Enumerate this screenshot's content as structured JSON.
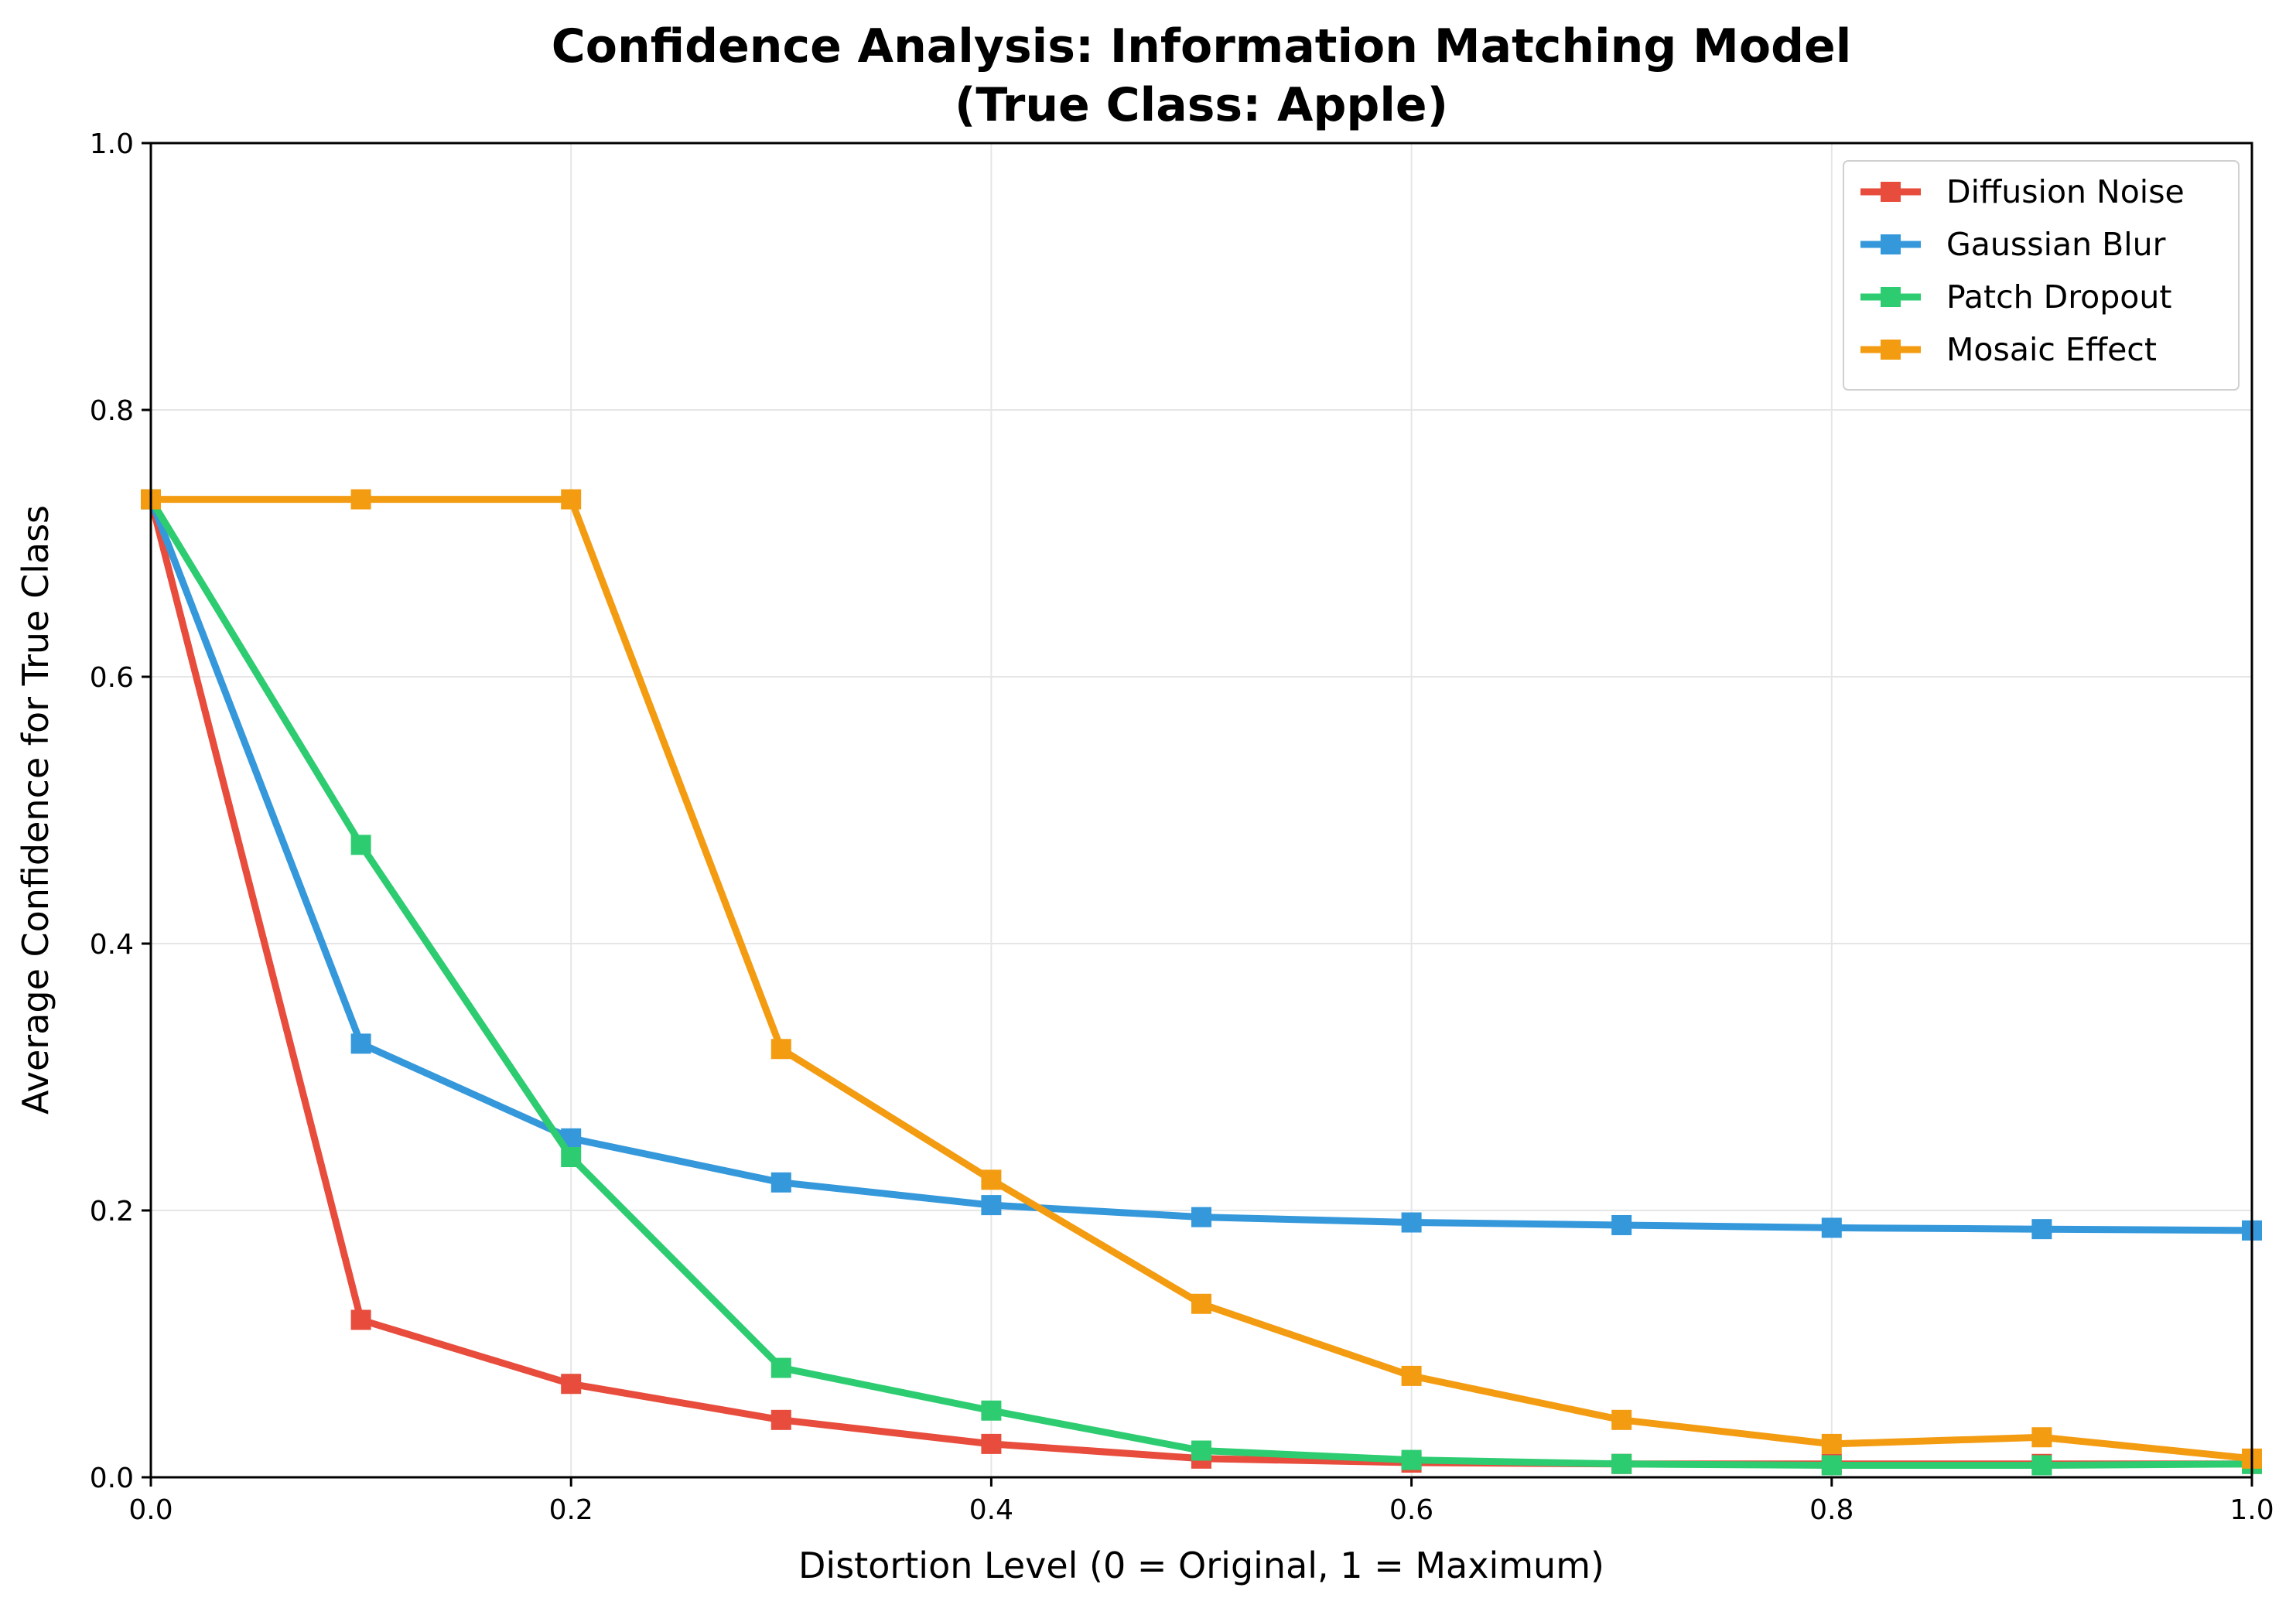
{
  "chart_data": {
    "type": "line",
    "title_line1": "Confidence Analysis: Information Matching Model",
    "title_line2": "(True Class: Apple)",
    "xlabel": "Distortion Level (0 = Original, 1 = Maximum)",
    "ylabel": "Average Confidence for True Class",
    "xlim": [
      0,
      1
    ],
    "ylim": [
      0,
      1
    ],
    "xticks": [
      "0.0",
      "0.2",
      "0.4",
      "0.6",
      "0.8",
      "1.0"
    ],
    "yticks": [
      "0.0",
      "0.2",
      "0.4",
      "0.6",
      "0.8",
      "1.0"
    ],
    "grid": true,
    "legend_position": "top-right",
    "x": [
      0.0,
      0.1,
      0.2,
      0.3,
      0.4,
      0.5,
      0.6,
      0.7,
      0.8,
      0.9,
      1.0
    ],
    "series": [
      {
        "name": "Diffusion Noise",
        "color": "#e74c3c",
        "marker": "square",
        "values": [
          0.733,
          0.118,
          0.07,
          0.043,
          0.025,
          0.014,
          0.011,
          0.01,
          0.01,
          0.01,
          0.01
        ]
      },
      {
        "name": "Gaussian Blur",
        "color": "#3498db",
        "marker": "square",
        "values": [
          0.733,
          0.325,
          0.254,
          0.221,
          0.204,
          0.195,
          0.191,
          0.189,
          0.187,
          0.186,
          0.185
        ]
      },
      {
        "name": "Patch Dropout",
        "color": "#2ecc71",
        "marker": "square",
        "values": [
          0.733,
          0.474,
          0.24,
          0.082,
          0.05,
          0.02,
          0.013,
          0.01,
          0.009,
          0.009,
          0.01
        ]
      },
      {
        "name": "Mosaic Effect",
        "color": "#f39c12",
        "marker": "square",
        "values": [
          0.733,
          0.733,
          0.733,
          0.321,
          0.223,
          0.13,
          0.076,
          0.043,
          0.025,
          0.03,
          0.014
        ]
      }
    ]
  }
}
